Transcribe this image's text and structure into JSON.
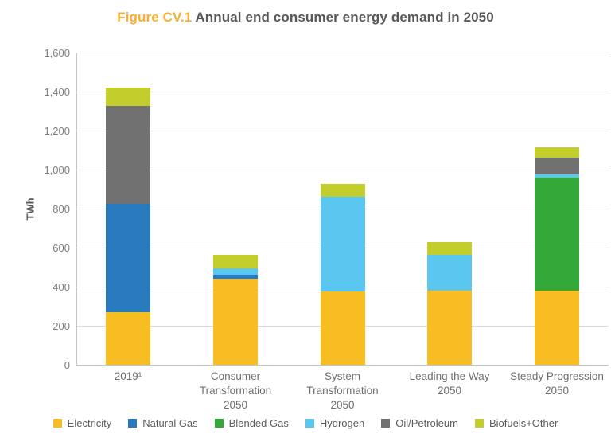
{
  "title": {
    "figure_label": "Figure CV.1",
    "text": "Annual end consumer energy demand in 2050"
  },
  "chart_data": {
    "type": "bar",
    "stacked": true,
    "title": "Figure CV.1 Annual end consumer energy demand in 2050",
    "ylabel": "TWh",
    "ylim": [
      0,
      1600
    ],
    "ytick_interval": 200,
    "ytick_labels": [
      "0",
      "200",
      "400",
      "600",
      "800",
      "1,000",
      "1,200",
      "1,400",
      "1,600"
    ],
    "grid": true,
    "legend_position": "bottom",
    "categories": [
      "2019¹",
      "Consumer Transformation 2050",
      "System Transformation 2050",
      "Leading the Way 2050",
      "Steady Progression 2050"
    ],
    "category_label_lines": [
      [
        "2019¹"
      ],
      [
        "Consumer",
        "Transformation",
        "2050"
      ],
      [
        "System",
        "Transformation",
        "2050"
      ],
      [
        "Leading the Way",
        "2050"
      ],
      [
        "Steady Progression",
        "2050"
      ]
    ],
    "series": [
      {
        "name": "Electricity",
        "color": "#F9BD24",
        "values": [
          270,
          440,
          375,
          380,
          380
        ]
      },
      {
        "name": "Natural Gas",
        "color": "#2979BE",
        "values": [
          555,
          20,
          0,
          0,
          0
        ]
      },
      {
        "name": "Blended Gas",
        "color": "#34A838",
        "values": [
          0,
          0,
          0,
          0,
          580
        ]
      },
      {
        "name": "Hydrogen",
        "color": "#5BC6F0",
        "values": [
          0,
          35,
          485,
          185,
          15
        ]
      },
      {
        "name": "Oil/Petroleum",
        "color": "#717171",
        "values": [
          500,
          0,
          0,
          0,
          85
        ]
      },
      {
        "name": "Biofuels+Other",
        "color": "#C3CE2C",
        "values": [
          95,
          70,
          65,
          65,
          55
        ]
      }
    ],
    "bar_totals": [
      1420,
      565,
      925,
      630,
      1115
    ]
  },
  "colors": {
    "figure_label": "#F9B032",
    "title_text": "#58585A",
    "gridline": "#DBDBDB",
    "axis_line": "#C5C5C7",
    "tick_text": "#7E7E80",
    "legend_text": "#5B5B5E"
  }
}
